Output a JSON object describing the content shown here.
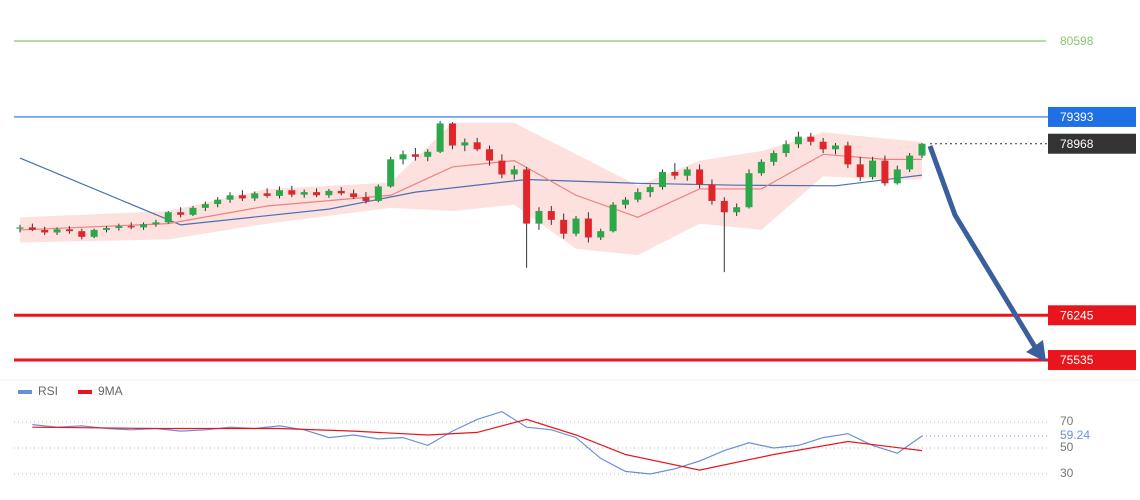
{
  "chart_data": {
    "type": "candlestick",
    "ylim": [
      75218,
      81249
    ],
    "up_color": "#2ba84a",
    "down_color": "#e0262b",
    "candles": [
      [
        77620,
        77680,
        77560,
        77640
      ],
      [
        77640,
        77700,
        77580,
        77600
      ],
      [
        77600,
        77650,
        77520,
        77560
      ],
      [
        77560,
        77640,
        77520,
        77610
      ],
      [
        77610,
        77660,
        77540,
        77580
      ],
      [
        77580,
        77620,
        77450,
        77490
      ],
      [
        77490,
        77620,
        77470,
        77600
      ],
      [
        77600,
        77660,
        77560,
        77630
      ],
      [
        77630,
        77700,
        77590,
        77660
      ],
      [
        77660,
        77720,
        77610,
        77640
      ],
      [
        77640,
        77720,
        77600,
        77690
      ],
      [
        77690,
        77760,
        77650,
        77720
      ],
      [
        77720,
        77900,
        77700,
        77880
      ],
      [
        77880,
        77960,
        77800,
        77840
      ],
      [
        77840,
        77980,
        77820,
        77950
      ],
      [
        77950,
        78050,
        77900,
        78010
      ],
      [
        78010,
        78120,
        77960,
        78080
      ],
      [
        78080,
        78200,
        78030,
        78150
      ],
      [
        78150,
        78230,
        78060,
        78100
      ],
      [
        78100,
        78210,
        78060,
        78180
      ],
      [
        78180,
        78260,
        78110,
        78140
      ],
      [
        78140,
        78290,
        78100,
        78230
      ],
      [
        78230,
        78300,
        78120,
        78160
      ],
      [
        78160,
        78240,
        78110,
        78200
      ],
      [
        78200,
        78260,
        78120,
        78150
      ],
      [
        78150,
        78250,
        78110,
        78220
      ],
      [
        78220,
        78280,
        78150,
        78180
      ],
      [
        78180,
        78240,
        78090,
        78120
      ],
      [
        78120,
        78200,
        78020,
        78060
      ],
      [
        78060,
        78320,
        78040,
        78290
      ],
      [
        78290,
        78760,
        78270,
        78720
      ],
      [
        78720,
        78860,
        78640,
        78800
      ],
      [
        78800,
        78900,
        78700,
        78760
      ],
      [
        78760,
        78880,
        78690,
        78840
      ],
      [
        78840,
        79330,
        78820,
        79290
      ],
      [
        79290,
        79310,
        78880,
        78940
      ],
      [
        78940,
        79050,
        78850,
        78990
      ],
      [
        78990,
        79060,
        78850,
        78880
      ],
      [
        78880,
        78940,
        78620,
        78700
      ],
      [
        78700,
        78800,
        78420,
        78480
      ],
      [
        78480,
        78620,
        78400,
        78560
      ],
      [
        78560,
        78600,
        77000,
        77700
      ],
      [
        77700,
        77960,
        77600,
        77900
      ],
      [
        77900,
        77980,
        77680,
        77760
      ],
      [
        77760,
        77860,
        77460,
        77540
      ],
      [
        77540,
        77820,
        77500,
        77780
      ],
      [
        77780,
        77880,
        77400,
        77480
      ],
      [
        77480,
        77620,
        77440,
        77580
      ],
      [
        77580,
        78040,
        77560,
        78000
      ],
      [
        78000,
        78120,
        77940,
        78080
      ],
      [
        78080,
        78260,
        78040,
        78200
      ],
      [
        78200,
        78320,
        78120,
        78280
      ],
      [
        78280,
        78560,
        78240,
        78520
      ],
      [
        78520,
        78660,
        78400,
        78460
      ],
      [
        78460,
        78600,
        78380,
        78560
      ],
      [
        78560,
        78640,
        78260,
        78320
      ],
      [
        78320,
        78400,
        78000,
        78060
      ],
      [
        78060,
        78120,
        76930,
        77880
      ],
      [
        77880,
        78020,
        77820,
        77960
      ],
      [
        77960,
        78560,
        77940,
        78500
      ],
      [
        78500,
        78720,
        78460,
        78680
      ],
      [
        78680,
        78860,
        78620,
        78820
      ],
      [
        78820,
        79020,
        78760,
        78960
      ],
      [
        78960,
        79160,
        78900,
        79080
      ],
      [
        79080,
        79140,
        78940,
        79000
      ],
      [
        79000,
        79060,
        78820,
        78880
      ],
      [
        78880,
        78980,
        78800,
        78940
      ],
      [
        78940,
        79000,
        78580,
        78640
      ],
      [
        78640,
        78760,
        78380,
        78440
      ],
      [
        78440,
        78760,
        78400,
        78700
      ],
      [
        78700,
        78780,
        78300,
        78340
      ],
      [
        78340,
        78620,
        78320,
        78560
      ],
      [
        78560,
        78820,
        78520,
        78780
      ],
      [
        78780,
        78980,
        78740,
        78968
      ]
    ],
    "band": {
      "color": "#f9c8c4",
      "x": [
        0,
        12,
        20,
        30,
        35,
        40,
        45,
        50,
        55,
        60,
        65,
        70,
        73
      ],
      "upper": [
        77800,
        77900,
        78250,
        78350,
        79300,
        79300,
        78800,
        78300,
        78700,
        78850,
        79150,
        79050,
        79000
      ],
      "lower": [
        77400,
        77450,
        77700,
        77950,
        77900,
        78000,
        77300,
        77200,
        77700,
        77600,
        78450,
        78400,
        78400
      ]
    },
    "lines": [
      {
        "color": "#4a6fb5",
        "x": [
          0,
          13,
          25,
          32,
          41,
          50,
          58,
          66,
          73
        ],
        "values": [
          78740,
          77680,
          77930,
          78200,
          78400,
          78340,
          78310,
          78300,
          78470
        ]
      },
      {
        "color": "#f08080",
        "x": [
          0,
          12,
          20,
          30,
          35,
          40,
          45,
          50,
          55,
          60,
          65,
          70,
          73
        ],
        "values": [
          77600,
          77700,
          77980,
          78150,
          78600,
          78700,
          78150,
          77800,
          78250,
          78250,
          78800,
          78720,
          78720
        ]
      }
    ],
    "levels": [
      {
        "value": 80598,
        "color": "#8cc66e",
        "boxed": false,
        "dotted": false
      },
      {
        "value": 79393,
        "color": "#1f6fe5",
        "boxed": true,
        "dotted": false
      },
      {
        "value": 78968,
        "color": "#333333",
        "boxed": true,
        "dotted": true
      },
      {
        "value": 76245,
        "color": "#e8161c",
        "boxed": true,
        "dotted": false
      },
      {
        "value": 75535,
        "color": "#e8161c",
        "boxed": true,
        "dotted": false
      }
    ],
    "rsi": {
      "ylim": [
        20,
        85
      ],
      "yticks": [
        70,
        50,
        30
      ],
      "series": [
        {
          "name": "RSI",
          "color": "#6a8fd8",
          "x": [
            1,
            3,
            5,
            7,
            9,
            11,
            13,
            15,
            17,
            19,
            21,
            23,
            25,
            27,
            29,
            31,
            33,
            35,
            37,
            39,
            41,
            43,
            45,
            47,
            49,
            51,
            53,
            55,
            57,
            59,
            61,
            63,
            65,
            67,
            69,
            71,
            73
          ],
          "values": [
            68,
            66,
            67,
            65,
            64,
            65,
            63,
            64,
            66,
            65,
            67,
            64,
            58,
            60,
            57,
            58,
            52,
            63,
            72,
            78,
            66,
            64,
            58,
            42,
            32,
            30,
            34,
            40,
            48,
            54,
            50,
            52,
            58,
            61,
            52,
            46,
            59.24
          ]
        },
        {
          "name": "9MA",
          "color": "#e8161c",
          "x": [
            1,
            11,
            21,
            27,
            33,
            37,
            41,
            45,
            49,
            55,
            61,
            67,
            73
          ],
          "values": [
            66,
            65,
            65,
            63,
            60,
            62,
            72,
            60,
            45,
            33,
            45,
            55,
            48
          ]
        }
      ]
    }
  }
}
